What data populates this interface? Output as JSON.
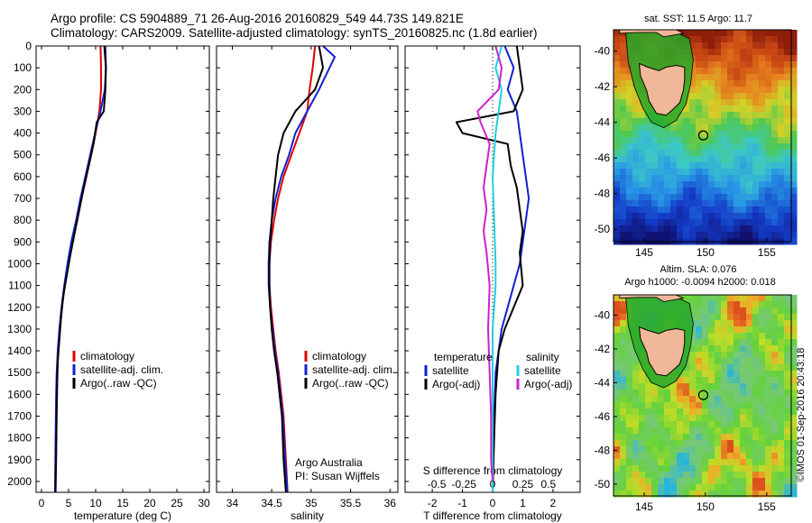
{
  "title": {
    "line1": "Argo profile: CS 5904889_71 26-Aug-2016 20160829_549 44.73S 149.821E",
    "line2": "Climatology: CARS2009. Satellite-adjusted climatology: synTS_20160825.nc (1.8d earlier)"
  },
  "depth_ticks": [
    0,
    100,
    200,
    300,
    400,
    500,
    600,
    700,
    800,
    900,
    1000,
    1100,
    1200,
    1300,
    1400,
    1500,
    1600,
    1700,
    1800,
    1900,
    2000
  ],
  "colors": {
    "climatology": "#e00000",
    "satellite": "#1020d0",
    "argo": "#000000",
    "satellite_s": "#20d0e0",
    "argo_s": "#d020d0",
    "shelf": "#28a828",
    "land": "#f0b898"
  },
  "chart_data": [
    {
      "type": "line",
      "id": "temperature",
      "xlabel": "temperature (deg C)",
      "ylabel": "",
      "xlim": [
        -1,
        31
      ],
      "ylim": [
        2050,
        0
      ],
      "xticks": [
        0,
        5,
        10,
        15,
        20,
        25,
        30
      ],
      "legend": [
        "climatology",
        "satellite-adj. clim.",
        "Argo(..raw -QC)"
      ],
      "series": [
        {
          "name": "climatology",
          "color": "#e00000",
          "x": [
            10.9,
            11.0,
            11.0,
            10.7,
            10.0,
            9.2,
            8.3,
            7.4,
            6.6,
            5.7,
            5.0,
            4.3,
            3.8,
            3.4,
            3.1,
            2.9,
            2.8,
            2.7,
            2.6,
            2.5
          ],
          "y": [
            0,
            100,
            200,
            300,
            400,
            500,
            600,
            700,
            800,
            900,
            1000,
            1100,
            1200,
            1300,
            1400,
            1500,
            1600,
            1800,
            1900,
            2050
          ]
        },
        {
          "name": "satellite-adj. clim.",
          "color": "#1020d0",
          "x": [
            11.8,
            11.9,
            11.7,
            10.9,
            9.9,
            9.0,
            8.1,
            7.2,
            6.4,
            5.5,
            4.8,
            4.2,
            3.7,
            3.3,
            3.0,
            2.8,
            2.7,
            2.6,
            2.5
          ],
          "y": [
            0,
            100,
            200,
            300,
            400,
            500,
            600,
            700,
            800,
            900,
            1000,
            1100,
            1200,
            1300,
            1400,
            1500,
            1600,
            1800,
            2050
          ]
        },
        {
          "name": "Argo(..raw -QC)",
          "color": "#000000",
          "x": [
            11.6,
            11.9,
            11.8,
            11.5,
            10.2,
            9.6,
            8.7,
            7.8,
            7.0,
            6.2,
            5.4,
            4.7,
            4.0,
            3.6,
            3.3,
            3.0,
            2.9,
            2.8,
            2.7,
            2.6
          ],
          "y": [
            0,
            100,
            200,
            300,
            350,
            450,
            550,
            650,
            750,
            850,
            950,
            1050,
            1150,
            1250,
            1350,
            1450,
            1550,
            1700,
            1900,
            2050
          ]
        }
      ]
    },
    {
      "type": "line",
      "id": "salinity",
      "xlabel": "salinity",
      "ylabel": "",
      "xlim": [
        33.8,
        36.1
      ],
      "ylim": [
        2050,
        0
      ],
      "xticks": [
        34,
        34.5,
        35,
        35.5,
        36
      ],
      "legend": [
        "climatology",
        "satellite-adj. clim.",
        "Argo(..raw -QC)"
      ],
      "series": [
        {
          "name": "climatology",
          "color": "#e00000",
          "x": [
            35.05,
            35.02,
            34.98,
            34.95,
            34.85,
            34.75,
            34.65,
            34.58,
            34.53,
            34.49,
            34.47,
            34.47,
            34.49,
            34.52,
            34.55,
            34.59,
            34.62,
            34.65,
            34.68,
            34.7
          ],
          "y": [
            0,
            100,
            200,
            300,
            400,
            500,
            600,
            700,
            800,
            900,
            1000,
            1100,
            1200,
            1300,
            1400,
            1500,
            1600,
            1700,
            1900,
            2050
          ]
        },
        {
          "name": "satellite-adj. clim.",
          "color": "#1020d0",
          "x": [
            35.15,
            35.3,
            35.1,
            34.95,
            34.8,
            34.72,
            34.62,
            34.55,
            34.5,
            34.47,
            34.46,
            34.46,
            34.48,
            34.51,
            34.54,
            34.58,
            34.61,
            34.64,
            34.67,
            34.7
          ],
          "y": [
            0,
            50,
            200,
            300,
            400,
            500,
            600,
            700,
            800,
            900,
            1000,
            1100,
            1200,
            1300,
            1400,
            1500,
            1600,
            1700,
            1900,
            2050
          ]
        },
        {
          "name": "Argo(..raw -QC)",
          "color": "#000000",
          "x": [
            35.1,
            35.15,
            35.05,
            34.8,
            34.65,
            34.58,
            34.55,
            34.52,
            34.5,
            34.48,
            34.47,
            34.47,
            34.48,
            34.5,
            34.53,
            34.57,
            34.6,
            34.63,
            34.65,
            34.68
          ],
          "y": [
            0,
            100,
            200,
            300,
            400,
            500,
            600,
            700,
            800,
            900,
            1000,
            1100,
            1200,
            1300,
            1400,
            1500,
            1600,
            1700,
            1900,
            2050
          ]
        }
      ],
      "annotations": [
        "Argo Australia",
        "PI: Susan Wijffels"
      ]
    },
    {
      "type": "line",
      "id": "difference",
      "xlabel": "T difference from climatology",
      "xlabel_top": "S difference from climatology",
      "xlim": [
        -2.9,
        2.9
      ],
      "ylim": [
        2050,
        0
      ],
      "xticks": [
        -2,
        -1,
        0,
        1,
        2
      ],
      "top_ticks": [
        {
          "value": -0.5,
          "label": "-0.5",
          "pos": -1.85
        },
        {
          "value": -0.25,
          "label": "-0.25",
          "pos": -0.95
        },
        {
          "value": 0,
          "label": "0",
          "pos": 0
        },
        {
          "value": 0.25,
          "label": "0.25",
          "pos": 1.0
        },
        {
          "value": 0.5,
          "label": "0.5",
          "pos": 1.85
        }
      ],
      "legend_titles": [
        "temperature",
        "salinity"
      ],
      "legend": [
        "satellite",
        "Argo(-adj)",
        "satellite",
        "Argo(-adj)"
      ],
      "series": [
        {
          "name": "temperature satellite",
          "color": "#1020d0",
          "x": [
            0.4,
            0.7,
            0.5,
            0.8,
            0.9,
            1.0,
            1.1,
            1.2,
            1.1,
            1.0,
            0.9,
            0.7,
            0.5,
            0.3,
            0.2,
            0.1,
            0.05,
            0.0
          ],
          "y": [
            0,
            100,
            200,
            300,
            400,
            500,
            600,
            700,
            800,
            900,
            1000,
            1100,
            1200,
            1300,
            1400,
            1500,
            1700,
            2050
          ]
        },
        {
          "name": "temperature Argo(-adj)",
          "color": "#000000",
          "x": [
            0.8,
            0.9,
            1.0,
            0.7,
            -1.2,
            -1.0,
            0.5,
            0.6,
            0.8,
            0.9,
            1.0,
            0.9,
            1.0,
            0.7,
            0.4,
            0.2,
            0.1,
            0.05,
            0.0
          ],
          "y": [
            0,
            100,
            200,
            300,
            350,
            400,
            450,
            550,
            650,
            750,
            850,
            950,
            1100,
            1200,
            1300,
            1400,
            1600,
            1800,
            2050
          ]
        },
        {
          "name": "salinity satellite",
          "color": "#20d0e0",
          "x": [
            0.3,
            0.1,
            0.3,
            0.2,
            0.1,
            0.0,
            0.05,
            0.1,
            0.1,
            0.05,
            0.0,
            0.0,
            0.0,
            0.0,
            0.0
          ],
          "y": [
            0,
            100,
            200,
            300,
            400,
            600,
            800,
            1000,
            1100,
            1200,
            1300,
            1500,
            1700,
            1900,
            2050
          ]
        },
        {
          "name": "salinity Argo(-adj)",
          "color": "#d020d0",
          "x": [
            0.1,
            0.3,
            0.2,
            -0.5,
            -0.4,
            -0.1,
            -0.2,
            -0.3,
            -0.2,
            -0.3,
            -0.2,
            -0.1,
            -0.15,
            -0.1,
            -0.05,
            -0.05,
            0.0
          ],
          "y": [
            0,
            100,
            200,
            300,
            350,
            450,
            550,
            650,
            750,
            850,
            950,
            1100,
            1300,
            1500,
            1700,
            1900,
            2000
          ]
        }
      ]
    },
    {
      "type": "heatmap",
      "id": "sst-map",
      "title": "sat. SST: 11.5 Argo: 11.7",
      "xlim": [
        142.5,
        157.0
      ],
      "ylim": [
        -50.7,
        -38.8
      ],
      "xticks": [
        145,
        150,
        155
      ],
      "yticks": [
        -40,
        -42,
        -44,
        -46,
        -48,
        -50
      ],
      "argo_location": {
        "lon": 149.82,
        "lat": -44.73
      }
    },
    {
      "type": "heatmap",
      "id": "sla-map",
      "title_line1": "Altim. SLA: 0.076",
      "title_line2": "Argo h1000: -0.0094 h2000: 0.018",
      "xlim": [
        142.5,
        157.0
      ],
      "ylim": [
        -50.7,
        -38.8
      ],
      "xticks": [
        145,
        150,
        155
      ],
      "yticks": [
        -40,
        -42,
        -44,
        -46,
        -48,
        -50
      ],
      "argo_location": {
        "lon": 149.82,
        "lat": -44.73
      }
    }
  ],
  "credit": "©IMOS 01-Sep-2016 20:43:18"
}
